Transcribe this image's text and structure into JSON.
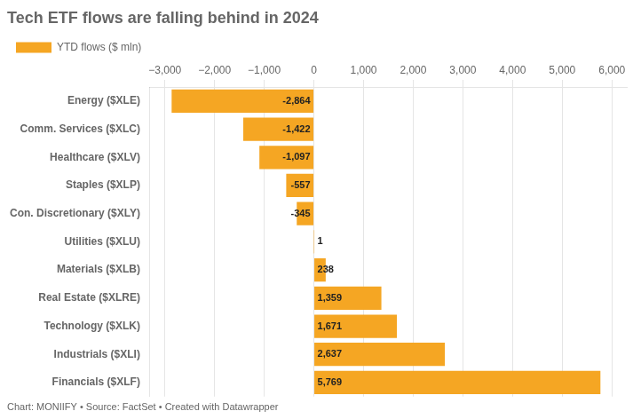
{
  "chart_data": {
    "type": "bar",
    "orientation": "horizontal",
    "title": "Tech ETF flows are falling behind in 2024",
    "categories": [
      "Energy ($XLE)",
      "Comm. Services ($XLC)",
      "Healthcare ($XLV)",
      "Staples ($XLP)",
      "Con. Discretionary ($XLY)",
      "Utilities ($XLU)",
      "Materials ($XLB)",
      "Real Estate ($XLRE)",
      "Technology ($XLK)",
      "Industrials ($XLI)",
      "Financials ($XLF)"
    ],
    "series": [
      {
        "name": "YTD flows ($ mln)",
        "color": "#F5A623",
        "values": [
          -2864,
          -1422,
          -1097,
          -557,
          -345,
          1,
          238,
          1359,
          1671,
          2637,
          5769
        ],
        "value_labels": [
          "-2,864",
          "-1,422",
          "-1,097",
          "-557",
          "-345",
          "1",
          "238",
          "1,359",
          "1,671",
          "2,637",
          "5,769"
        ]
      }
    ],
    "xlim": [
      -3300,
      6300
    ],
    "xticks": [
      {
        "value": -3000,
        "label": "−3,000"
      },
      {
        "value": -2000,
        "label": "−2,000"
      },
      {
        "value": -1000,
        "label": "−1,000"
      },
      0,
      {
        "value": 1000,
        "label": "1,000"
      },
      {
        "value": 2000,
        "label": "2,000"
      },
      {
        "value": 3000,
        "label": "3,000"
      },
      {
        "value": 4000,
        "label": "4,000"
      },
      {
        "value": 5000,
        "label": "5,000"
      },
      {
        "value": 6000,
        "label": "6,000"
      }
    ],
    "grid": true,
    "legend": "top",
    "data_labels": true,
    "annotations": [
      "Chart: MONIIFY • Source: FactSet • Created with Datawrapper"
    ]
  }
}
